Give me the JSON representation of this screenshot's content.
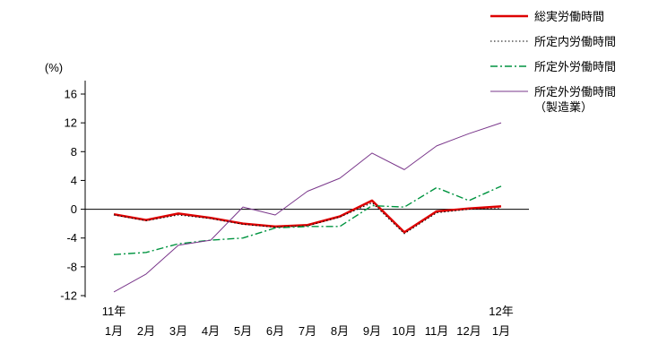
{
  "chart_data": {
    "type": "line",
    "title": "",
    "ylabel": "(%)",
    "xlabel": "",
    "ylim": [
      -12,
      16
    ],
    "yticks": [
      16,
      12,
      8,
      4,
      0,
      -4,
      -8,
      -12
    ],
    "grid": false,
    "zero_line": true,
    "legend_position": "top-right",
    "categories": [
      "1月",
      "2月",
      "3月",
      "4月",
      "5月",
      "6月",
      "7月",
      "8月",
      "9月",
      "10月",
      "11月",
      "12月",
      "1月"
    ],
    "year_labels": [
      {
        "index": 0,
        "label": "11年"
      },
      {
        "index": 12,
        "label": "12年"
      }
    ],
    "series": [
      {
        "name": "総実労働時間",
        "legend_label": "総実労働時間",
        "color": "#dd0000",
        "width": 2.5,
        "dash": "",
        "values": [
          -0.7,
          -1.5,
          -0.6,
          -1.2,
          -2.0,
          -2.4,
          -2.2,
          -1.0,
          1.2,
          -3.2,
          -0.3,
          0.1,
          0.4
        ]
      },
      {
        "name": "所定内労働時間",
        "legend_label": "所定内労働時間",
        "color": "#000000",
        "width": 1,
        "dash": "1.5,2.5",
        "values": [
          -0.8,
          -1.6,
          -0.8,
          -1.3,
          -2.1,
          -2.5,
          -2.3,
          -1.1,
          0.9,
          -3.4,
          -0.5,
          0.0,
          0.1
        ]
      },
      {
        "name": "所定外労働時間",
        "legend_label": "所定外労働時間",
        "color": "#009440",
        "width": 1.4,
        "dash": "8,3,2,3",
        "values": [
          -6.3,
          -6.0,
          -4.8,
          -4.3,
          -4.0,
          -2.6,
          -2.4,
          -2.4,
          0.5,
          0.3,
          3.0,
          1.2,
          3.2
        ]
      },
      {
        "name": "所定外労働時間（製造業）",
        "legend_label": "所定外労働時間\n（製造業）",
        "color": "#7a378b",
        "width": 1,
        "dash": "",
        "values": [
          -11.5,
          -9.0,
          -5.0,
          -4.3,
          0.3,
          -0.8,
          2.5,
          4.3,
          7.8,
          5.5,
          8.8,
          10.5,
          12.0
        ]
      }
    ]
  }
}
